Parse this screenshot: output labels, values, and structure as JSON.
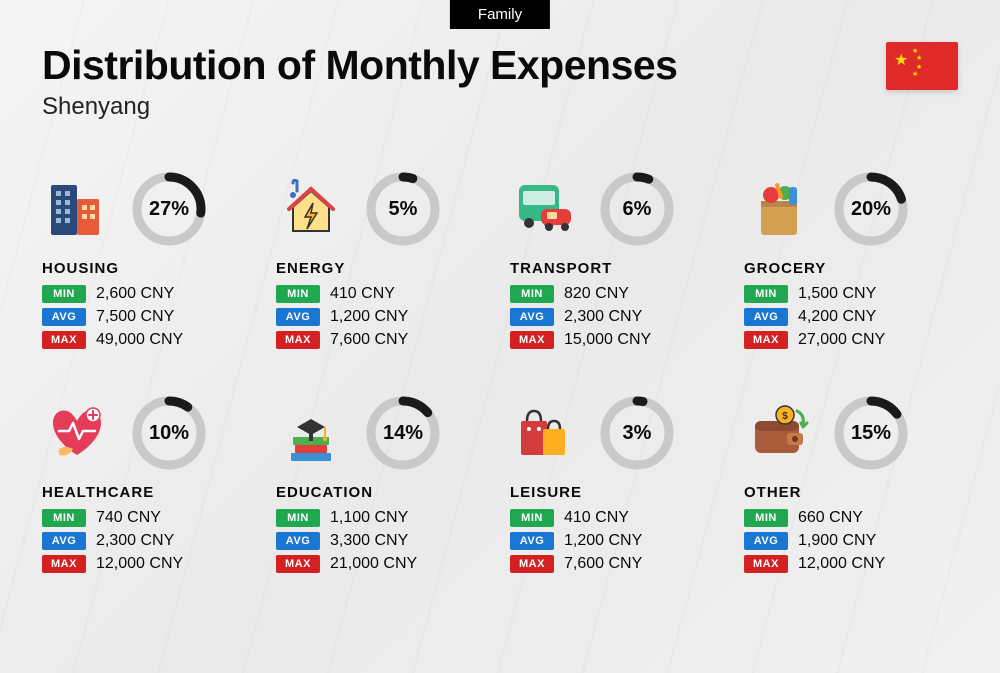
{
  "tag_label": "Family",
  "title": "Distribution of Monthly Expenses",
  "subtitle": "Shenyang",
  "currency": "CNY",
  "colors": {
    "tag_bg": "#000000",
    "tag_text": "#ffffff",
    "title_text": "#0a0a0a",
    "min_badge": "#1fa850",
    "avg_badge": "#1976d2",
    "max_badge": "#d32020",
    "donut_fg": "#1a1a1a",
    "donut_bg": "#c9c9c9",
    "page_bg_from": "#f5f5f5",
    "page_bg_to": "#eaeaea",
    "flag_bg": "#e02a2a",
    "flag_star": "#ffde00"
  },
  "donut": {
    "size": 78,
    "stroke_width": 9,
    "radius": 32
  },
  "badges": {
    "min_label": "MIN",
    "avg_label": "AVG",
    "max_label": "MAX"
  },
  "categories": [
    {
      "key": "housing",
      "label": "HOUSING",
      "percent": 27,
      "min": "2,600",
      "avg": "7,500",
      "max": "49,000",
      "icon": "buildings-icon"
    },
    {
      "key": "energy",
      "label": "ENERGY",
      "percent": 5,
      "min": "410",
      "avg": "1,200",
      "max": "7,600",
      "icon": "house-bolt-icon"
    },
    {
      "key": "transport",
      "label": "TRANSPORT",
      "percent": 6,
      "min": "820",
      "avg": "2,300",
      "max": "15,000",
      "icon": "bus-car-icon"
    },
    {
      "key": "grocery",
      "label": "GROCERY",
      "percent": 20,
      "min": "1,500",
      "avg": "4,200",
      "max": "27,000",
      "icon": "grocery-bag-icon"
    },
    {
      "key": "healthcare",
      "label": "HEALTHCARE",
      "percent": 10,
      "min": "740",
      "avg": "2,300",
      "max": "12,000",
      "icon": "healthcare-icon"
    },
    {
      "key": "education",
      "label": "EDUCATION",
      "percent": 14,
      "min": "1,100",
      "avg": "3,300",
      "max": "21,000",
      "icon": "education-icon"
    },
    {
      "key": "leisure",
      "label": "LEISURE",
      "percent": 3,
      "min": "410",
      "avg": "1,200",
      "max": "7,600",
      "icon": "shopping-bags-icon"
    },
    {
      "key": "other",
      "label": "OTHER",
      "percent": 15,
      "min": "660",
      "avg": "1,900",
      "max": "12,000",
      "icon": "wallet-icon"
    }
  ]
}
